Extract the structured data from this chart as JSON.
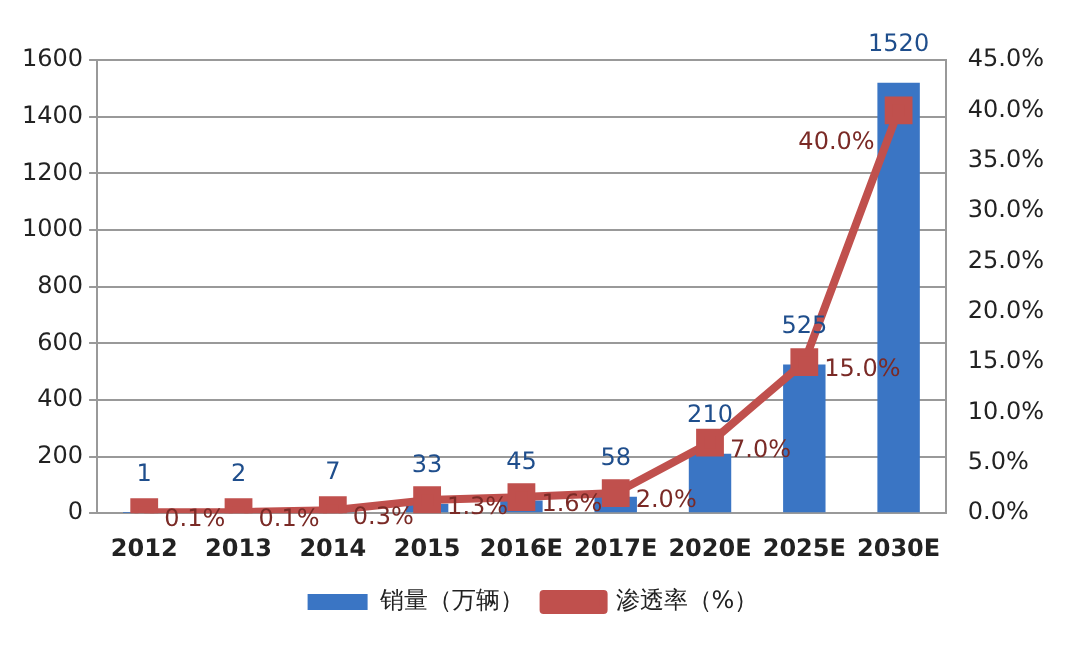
{
  "chart_data": {
    "type": "bar",
    "categories": [
      "2012",
      "2013",
      "2014",
      "2015",
      "2016E",
      "2017E",
      "2020E",
      "2025E",
      "2030E"
    ],
    "series": [
      {
        "name": "销量（万辆）",
        "color": "#3a75c4",
        "values": [
          1,
          2,
          7,
          33,
          45,
          58,
          210,
          525,
          1520
        ],
        "value_labels": [
          "1",
          "2",
          "7",
          "33",
          "45",
          "58",
          "210",
          "525",
          "1520"
        ]
      },
      {
        "name": "渗透率（%）",
        "type": "line",
        "axis": "y2",
        "color": "#c0504d",
        "marker": "square",
        "values": [
          0.1,
          0.1,
          0.3,
          1.3,
          1.6,
          2.0,
          7.0,
          15.0,
          40.0
        ],
        "value_labels": [
          "0.1%",
          "0.1%",
          "0.3%",
          "1.3%",
          "1.6%",
          "2.0%",
          "7.0%",
          "15.0%",
          "40.0%"
        ]
      }
    ],
    "ylim": [
      0,
      1600
    ],
    "yticks": [
      0,
      200,
      400,
      600,
      800,
      1000,
      1200,
      1400,
      1600
    ],
    "y2lim": [
      0,
      45
    ],
    "y2ticks": [
      {
        "value": 0,
        "label": "0.0%"
      },
      {
        "value": 5,
        "label": "5.0%"
      },
      {
        "value": 10,
        "label": "10.0%"
      },
      {
        "value": 15,
        "label": "15.0%"
      },
      {
        "value": 20,
        "label": "20.0%"
      },
      {
        "value": 25,
        "label": "25.0%"
      },
      {
        "value": 30,
        "label": "30.0%"
      },
      {
        "value": 35,
        "label": "35.0%"
      },
      {
        "value": 40,
        "label": "40.0%"
      },
      {
        "value": 45,
        "label": "45.0%"
      }
    ],
    "grid": "y",
    "legend": "bottom"
  }
}
